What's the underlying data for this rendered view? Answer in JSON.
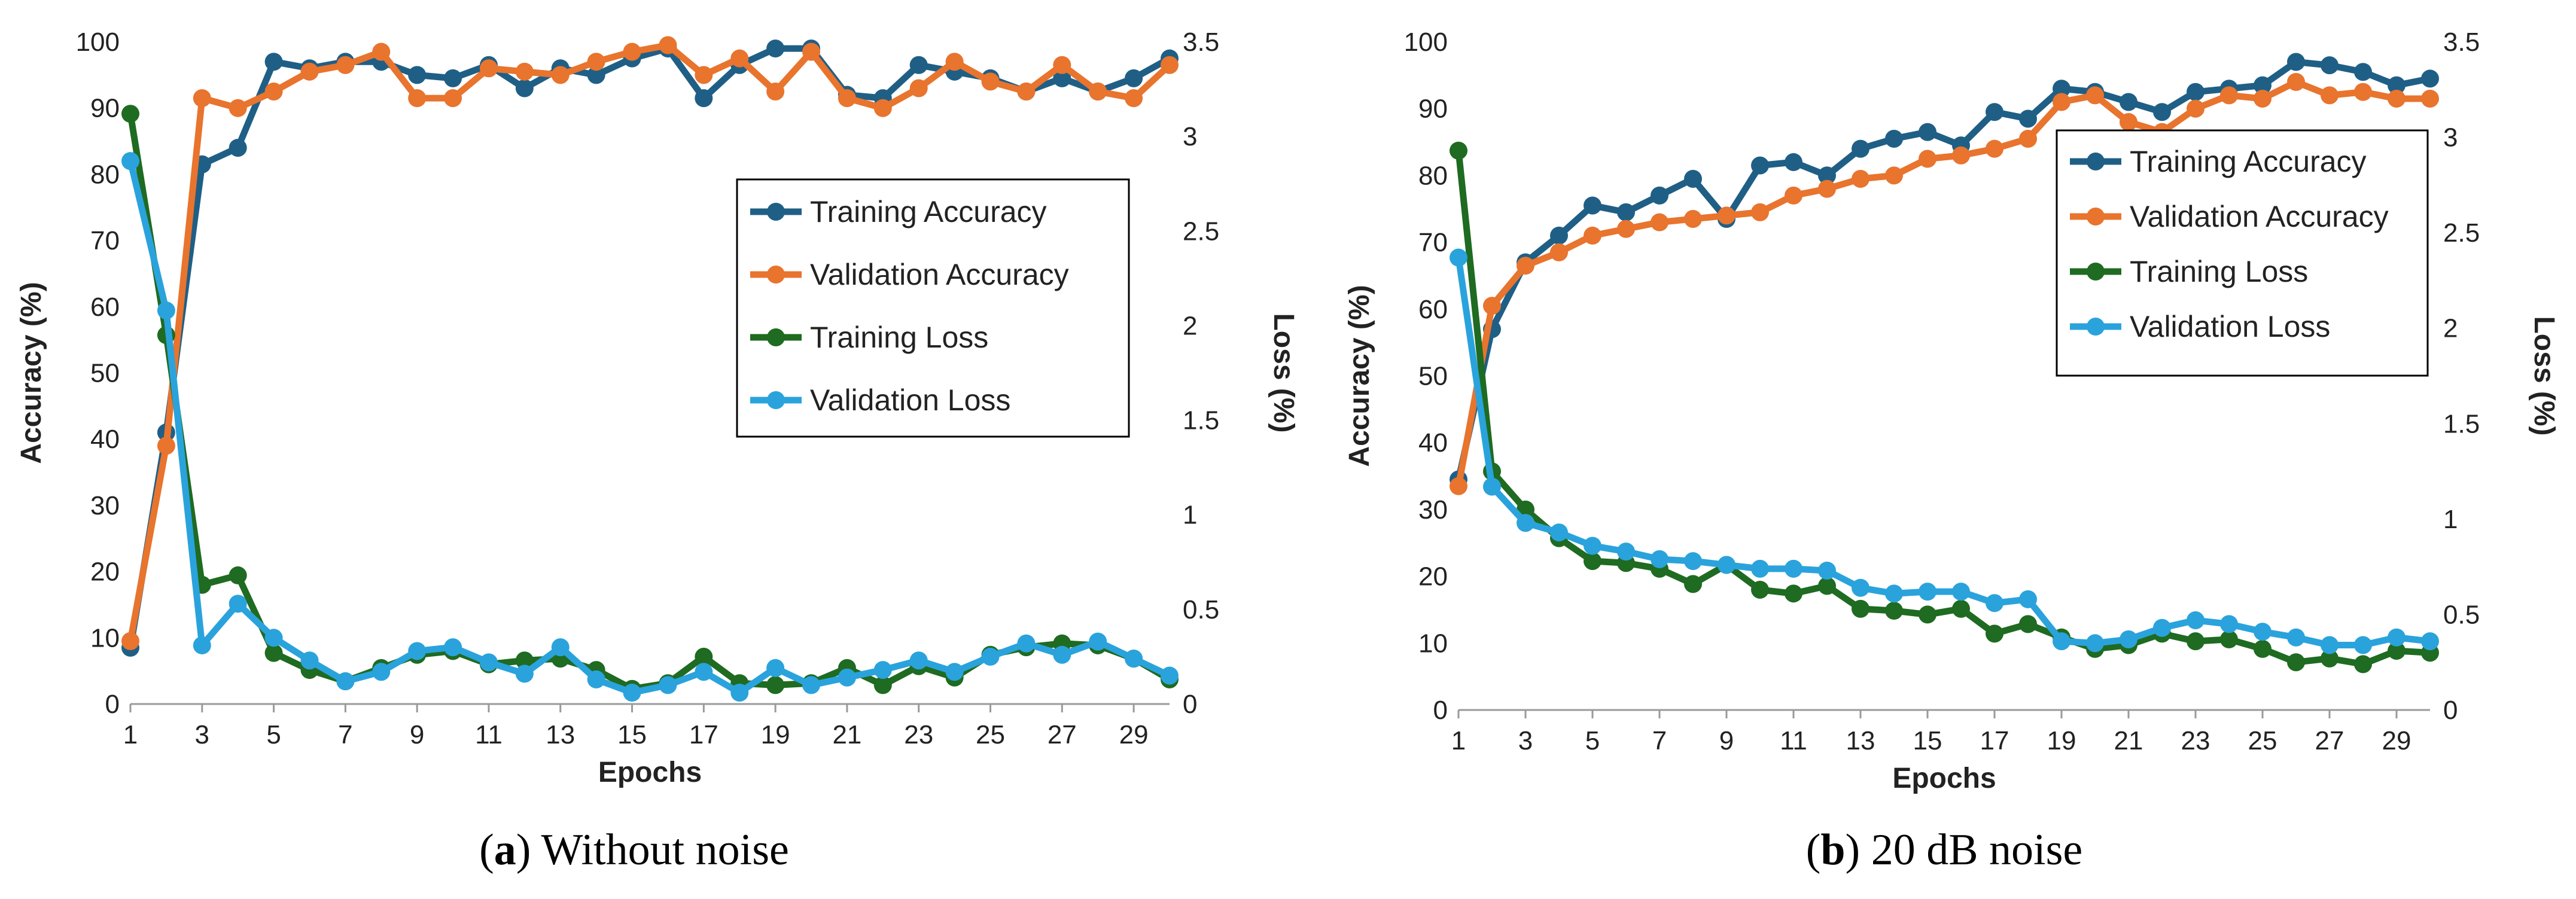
{
  "chart_data": [
    {
      "type": "line",
      "caption_letter": "a",
      "caption_text": " Without noise",
      "xlabel": "Epochs",
      "ylabel": "Accuracy (%)",
      "y2label": "Loss (%)",
      "x": [
        1,
        2,
        3,
        4,
        5,
        6,
        7,
        8,
        9,
        10,
        11,
        12,
        13,
        14,
        15,
        16,
        17,
        18,
        19,
        20,
        21,
        22,
        23,
        24,
        25,
        26,
        27,
        28,
        29,
        30
      ],
      "x_tick_labels": [
        "1",
        "3",
        "5",
        "7",
        "9",
        "11",
        "13",
        "15",
        "17",
        "19",
        "21",
        "23",
        "25",
        "27",
        "29"
      ],
      "ylim": [
        0,
        100
      ],
      "y_ticks": [
        "0",
        "10",
        "20",
        "30",
        "40",
        "50",
        "60",
        "70",
        "80",
        "90",
        "100"
      ],
      "y2lim": [
        0,
        3.5
      ],
      "y2_ticks": [
        "0",
        "0.5",
        "1",
        "1.5",
        "2",
        "2.5",
        "3",
        "3.5"
      ],
      "series": [
        {
          "name": "Training Accuracy",
          "axis": "left",
          "color": "#1f5f86",
          "values": [
            8.5,
            41,
            81.5,
            84,
            97,
            96,
            97,
            97,
            95,
            94.5,
            96.5,
            93,
            96,
            95,
            97.5,
            99,
            91.5,
            96.5,
            99,
            99,
            92,
            91.5,
            96.5,
            95.5,
            94.5,
            92.5,
            94.5,
            92.5,
            94.5,
            97.5
          ]
        },
        {
          "name": "Validation Accuracy",
          "axis": "left",
          "color": "#e8742e",
          "values": [
            9.5,
            39,
            91.5,
            90,
            92.5,
            95.5,
            96.5,
            98.5,
            91.5,
            91.5,
            96,
            95.5,
            95,
            97,
            98.5,
            99.5,
            95,
            97.5,
            92.5,
            98.5,
            91.5,
            90,
            93,
            97,
            94,
            92.5,
            96.5,
            92.5,
            91.5,
            96.5
          ]
        },
        {
          "name": "Training Loss",
          "axis": "right",
          "color": "#1e6b21",
          "values": [
            3.12,
            1.95,
            0.63,
            0.68,
            0.27,
            0.18,
            0.12,
            0.19,
            0.26,
            0.28,
            0.21,
            0.23,
            0.24,
            0.18,
            0.08,
            0.11,
            0.25,
            0.11,
            0.1,
            0.11,
            0.19,
            0.1,
            0.2,
            0.14,
            0.26,
            0.3,
            0.32,
            0.31,
            0.24,
            0.13
          ]
        },
        {
          "name": "Validation Loss",
          "axis": "right",
          "color": "#2aa3dc",
          "values": [
            2.87,
            2.08,
            0.31,
            0.53,
            0.35,
            0.23,
            0.12,
            0.17,
            0.28,
            0.3,
            0.22,
            0.16,
            0.3,
            0.13,
            0.06,
            0.1,
            0.17,
            0.06,
            0.19,
            0.1,
            0.14,
            0.18,
            0.23,
            0.17,
            0.25,
            0.32,
            0.26,
            0.33,
            0.24,
            0.15
          ]
        }
      ]
    },
    {
      "type": "line",
      "caption_letter": "b",
      "caption_text": " 20 dB noise",
      "xlabel": "Epochs",
      "ylabel": "Accuracy (%)",
      "y2label": "Loss (%)",
      "x": [
        1,
        2,
        3,
        4,
        5,
        6,
        7,
        8,
        9,
        10,
        11,
        12,
        13,
        14,
        15,
        16,
        17,
        18,
        19,
        20,
        21,
        22,
        23,
        24,
        25,
        26,
        27,
        28,
        29,
        30
      ],
      "x_tick_labels": [
        "1",
        "3",
        "5",
        "7",
        "9",
        "11",
        "13",
        "15",
        "17",
        "19",
        "21",
        "23",
        "25",
        "27",
        "29"
      ],
      "ylim": [
        0,
        100
      ],
      "y_ticks": [
        "0",
        "10",
        "20",
        "30",
        "40",
        "50",
        "60",
        "70",
        "80",
        "90",
        "100"
      ],
      "y2lim": [
        0,
        3.5
      ],
      "y2_ticks": [
        "0",
        "0.5",
        "1",
        "1.5",
        "2",
        "2.5",
        "3",
        "3.5"
      ],
      "series": [
        {
          "name": "Training Accuracy",
          "axis": "left",
          "color": "#1f5f86",
          "values": [
            34.5,
            57,
            67,
            71,
            75.5,
            74.5,
            77,
            79.5,
            73.5,
            81.5,
            82,
            80,
            84,
            85.5,
            86.5,
            84.5,
            89.5,
            88.5,
            93,
            92.5,
            91,
            89.5,
            92.5,
            93,
            93.5,
            97,
            96.5,
            95.5,
            93.5,
            94.5
          ]
        },
        {
          "name": "Validation Accuracy",
          "axis": "left",
          "color": "#e8742e",
          "values": [
            33.5,
            60.5,
            66.5,
            68.5,
            71,
            72,
            73,
            73.5,
            74,
            74.5,
            77,
            78,
            79.5,
            80,
            82.5,
            83,
            84,
            85.5,
            91,
            92,
            88,
            86.5,
            90,
            92,
            91.5,
            94,
            92,
            92.5,
            91.5,
            91.5
          ]
        },
        {
          "name": "Training Loss",
          "axis": "right",
          "color": "#1e6b21",
          "values": [
            2.93,
            1.25,
            1.05,
            0.9,
            0.78,
            0.77,
            0.74,
            0.66,
            0.76,
            0.63,
            0.61,
            0.65,
            0.53,
            0.52,
            0.5,
            0.53,
            0.4,
            0.45,
            0.38,
            0.32,
            0.34,
            0.4,
            0.36,
            0.37,
            0.32,
            0.25,
            0.27,
            0.24,
            0.31,
            0.3
          ]
        },
        {
          "name": "Validation Loss",
          "axis": "right",
          "color": "#2aa3dc",
          "values": [
            2.37,
            1.17,
            0.98,
            0.93,
            0.86,
            0.83,
            0.79,
            0.78,
            0.76,
            0.74,
            0.74,
            0.73,
            0.64,
            0.61,
            0.62,
            0.62,
            0.56,
            0.58,
            0.36,
            0.35,
            0.37,
            0.43,
            0.47,
            0.45,
            0.41,
            0.38,
            0.34,
            0.34,
            0.38,
            0.36
          ]
        }
      ]
    }
  ]
}
